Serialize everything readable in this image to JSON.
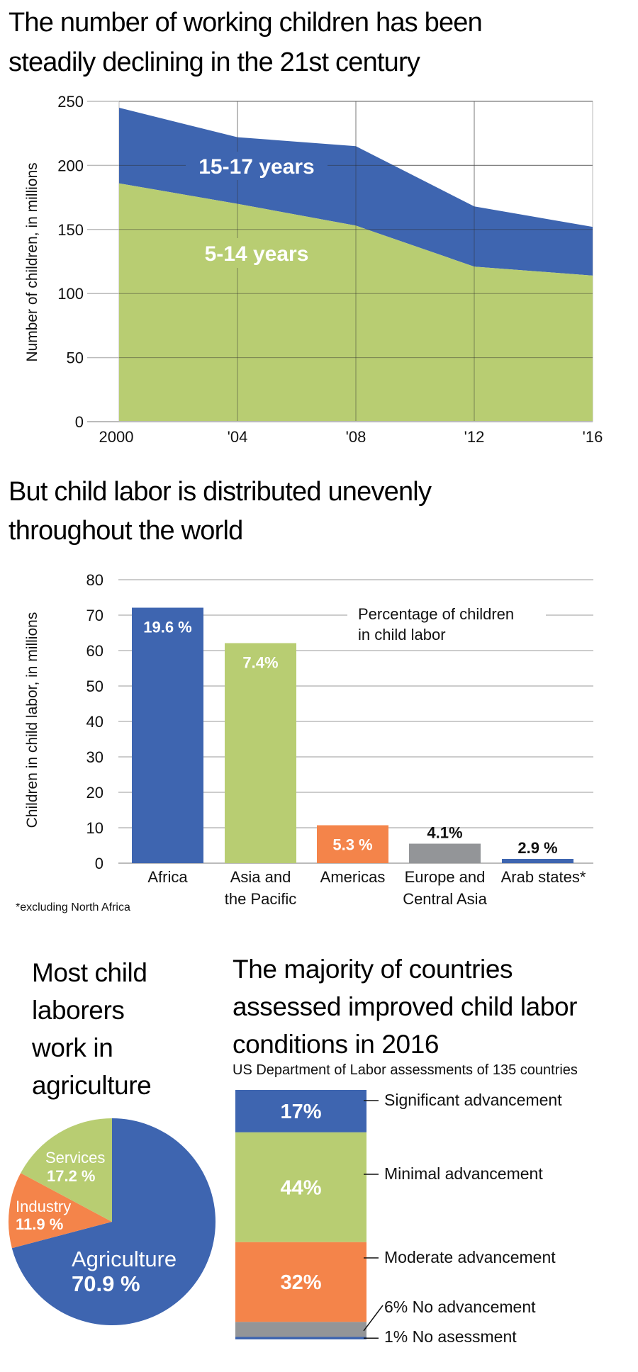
{
  "colors": {
    "blue": "#3e65b0",
    "green": "#b8cd72",
    "orange": "#f4844a",
    "gray": "#939598",
    "grid_dark": "#555555",
    "grid_light": "#bbbbbb"
  },
  "section1": {
    "title_line1": "The number of working children has been",
    "title_line2": "steadily declining in the 21st century"
  },
  "section2": {
    "title_line1": "But child labor is distributed unevenly",
    "title_line2": "throughout the world",
    "annotation_line1": "Percentage of children",
    "annotation_line2": "in child labor",
    "footnote": "*excluding North Africa"
  },
  "section3": {
    "title_lines": [
      "Most child",
      "laborers",
      "work in",
      "agriculture"
    ]
  },
  "section4": {
    "title_lines": [
      "The majority of countries",
      "assessed improved child labor",
      "conditions in 2016"
    ],
    "subtitle": "US Department of Labor assessments of 135 countries"
  },
  "chart_data": [
    {
      "type": "area",
      "stacked": true,
      "title": "The number of working children has been steadily declining in the 21st century",
      "xlabel": "",
      "ylabel": "Number of children, in millions",
      "x": [
        2000,
        2004,
        2008,
        2012,
        2016
      ],
      "x_tick_labels": [
        "2000",
        "'04",
        "'08",
        "'12",
        "'16"
      ],
      "y_ticks": [
        0,
        50,
        100,
        150,
        200,
        250
      ],
      "ylim": [
        0,
        250
      ],
      "grid": true,
      "series": [
        {
          "name": "5-14 years",
          "label": "5-14 years",
          "color": "#b8cd72",
          "values": [
            186,
            170,
            153,
            121,
            114
          ]
        },
        {
          "name": "15-17 years",
          "label": "15-17 years",
          "color": "#3e65b0",
          "values": [
            59,
            52,
            62,
            47,
            38
          ],
          "cumulative_top": [
            245,
            222,
            215,
            168,
            152
          ]
        }
      ]
    },
    {
      "type": "bar",
      "title": "But child labor is distributed unevenly throughout the world",
      "xlabel": "",
      "ylabel": "Children in child labor, in millions",
      "ylim": [
        0,
        80
      ],
      "y_ticks": [
        0,
        10,
        20,
        30,
        40,
        50,
        60,
        70,
        80
      ],
      "grid": true,
      "categories": [
        [
          "Africa"
        ],
        [
          "Asia and",
          "the Pacific"
        ],
        [
          "Americas"
        ],
        [
          "Europe and",
          "Central Asia"
        ],
        [
          "Arab states*"
        ]
      ],
      "values": [
        72.1,
        62.1,
        10.7,
        5.5,
        1.2
      ],
      "data_labels": [
        "19.6 %",
        "7.4%",
        "5.3 %",
        "4.1%",
        "2.9 %"
      ],
      "label_inside": [
        true,
        true,
        true,
        false,
        false
      ],
      "colors": [
        "#3e65b0",
        "#b8cd72",
        "#f4844a",
        "#939598",
        "#3e65b0"
      ]
    },
    {
      "type": "pie",
      "title": "Most child laborers work in agriculture",
      "slices": [
        {
          "name": "Agriculture",
          "value": 70.9,
          "label": "70.9 %",
          "color": "#3e65b0"
        },
        {
          "name": "Industry",
          "value": 11.9,
          "label": "11.9 %",
          "color": "#f4844a"
        },
        {
          "name": "Services",
          "value": 17.2,
          "label": "17.2 %",
          "color": "#b8cd72"
        }
      ]
    },
    {
      "type": "bar",
      "stacked": true,
      "title": "The majority of countries assessed improved child labor conditions in 2016",
      "subtitle": "US Department of Labor assessments of 135 countries",
      "ylim": [
        0,
        100
      ],
      "segments": [
        {
          "name": "Significant advancement",
          "value": 17,
          "inner_label": "17%",
          "side_label": "Significant advancement",
          "color": "#3e65b0"
        },
        {
          "name": "Minimal advancement",
          "value": 44,
          "inner_label": "44%",
          "side_label": "Minimal advancement",
          "color": "#b8cd72"
        },
        {
          "name": "Moderate advancement",
          "value": 32,
          "inner_label": "32%",
          "side_label": "Moderate advancement",
          "color": "#f4844a"
        },
        {
          "name": "No advancement",
          "value": 6,
          "inner_label": "",
          "side_label": "6% No advancement",
          "color": "#939598"
        },
        {
          "name": "No assessment",
          "value": 1,
          "inner_label": "",
          "side_label": "1% No asessment",
          "color": "#3e65b0"
        }
      ]
    }
  ]
}
